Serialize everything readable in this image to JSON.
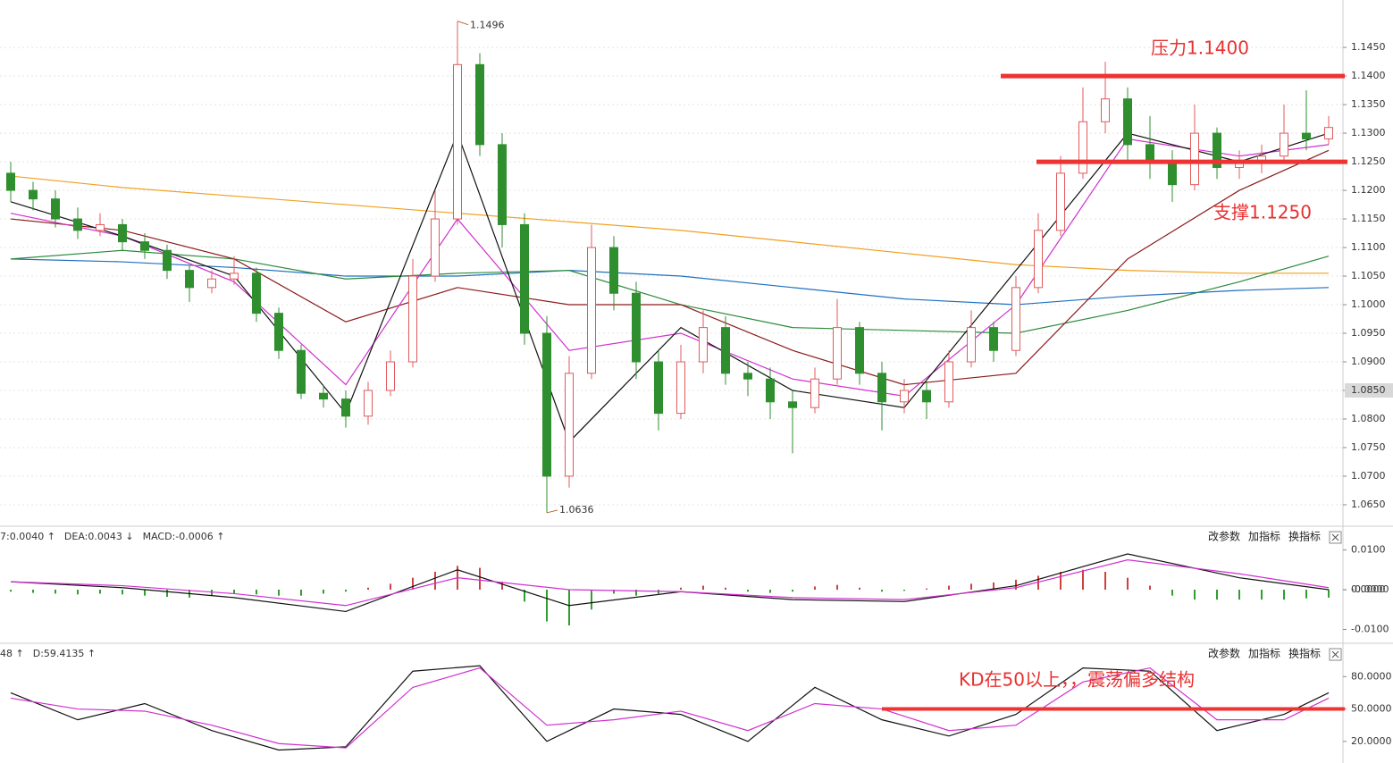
{
  "chart_data": [
    {
      "type": "candlestick",
      "up_color": "#e05a5c",
      "down_color": "#2f8f2f",
      "grid": true,
      "ylim": [
        1.0614,
        1.1533
      ],
      "yticks": [
        {
          "value": 1.145,
          "label": "1.1450"
        },
        {
          "value": 1.14,
          "label": "1.1400"
        },
        {
          "value": 1.135,
          "label": "1.1350"
        },
        {
          "value": 1.13,
          "label": "1.1300"
        },
        {
          "value": 1.125,
          "label": "1.1250"
        },
        {
          "value": 1.12,
          "label": "1.1200"
        },
        {
          "value": 1.115,
          "label": "1.1150"
        },
        {
          "value": 1.11,
          "label": "1.1100"
        },
        {
          "value": 1.105,
          "label": "1.1050"
        },
        {
          "value": 1.1,
          "label": "1.1000"
        },
        {
          "value": 1.095,
          "label": "1.0950"
        },
        {
          "value": 1.09,
          "label": "1.0900"
        },
        {
          "value": 1.085,
          "label": "1.0850"
        },
        {
          "value": 1.08,
          "label": "1.0800"
        },
        {
          "value": 1.075,
          "label": "1.0750"
        },
        {
          "value": 1.07,
          "label": "1.0700"
        },
        {
          "value": 1.065,
          "label": "1.0650"
        }
      ],
      "open": [
        1.123,
        1.12,
        1.1185,
        1.115,
        1.113,
        1.114,
        1.111,
        1.1095,
        1.106,
        1.103,
        1.1045,
        1.1055,
        1.0985,
        1.092,
        1.0845,
        1.0835,
        1.0805,
        1.085,
        1.09,
        1.105,
        1.115,
        1.142,
        1.128,
        1.114,
        1.095,
        1.07,
        1.088,
        1.11,
        1.102,
        1.09,
        1.081,
        1.09,
        1.096,
        1.088,
        1.087,
        1.083,
        1.082,
        1.087,
        1.096,
        1.088,
        1.083,
        1.085,
        1.083,
        1.09,
        1.096,
        1.092,
        1.103,
        1.113,
        1.123,
        1.132,
        1.136,
        1.128,
        1.125,
        1.121,
        1.13,
        1.124,
        1.125,
        1.126,
        1.13,
        1.129
      ],
      "high": [
        1.125,
        1.1215,
        1.12,
        1.117,
        1.116,
        1.115,
        1.1125,
        1.1105,
        1.107,
        1.106,
        1.1085,
        1.1065,
        1.0995,
        1.093,
        1.086,
        1.085,
        1.0865,
        1.092,
        1.108,
        1.12,
        1.1496,
        1.144,
        1.13,
        1.116,
        1.098,
        1.091,
        1.114,
        1.112,
        1.104,
        1.092,
        1.093,
        1.099,
        1.098,
        1.09,
        1.089,
        1.085,
        1.089,
        1.101,
        1.097,
        1.09,
        1.087,
        1.087,
        1.092,
        1.099,
        1.097,
        1.105,
        1.116,
        1.126,
        1.138,
        1.1425,
        1.138,
        1.133,
        1.127,
        1.135,
        1.131,
        1.127,
        1.128,
        1.135,
        1.1375,
        1.133
      ],
      "low": [
        1.118,
        1.1165,
        1.1135,
        1.1115,
        1.112,
        1.1095,
        1.108,
        1.1045,
        1.1005,
        1.102,
        1.1035,
        1.097,
        1.0905,
        1.0835,
        1.082,
        1.0785,
        1.079,
        1.084,
        1.089,
        1.104,
        1.114,
        1.126,
        1.11,
        1.093,
        1.0636,
        1.068,
        1.087,
        1.099,
        1.087,
        1.078,
        1.08,
        1.088,
        1.086,
        1.084,
        1.08,
        1.074,
        1.081,
        1.086,
        1.086,
        1.078,
        1.081,
        1.08,
        1.082,
        1.089,
        1.09,
        1.091,
        1.102,
        1.112,
        1.122,
        1.13,
        1.125,
        1.122,
        1.118,
        1.12,
        1.122,
        1.122,
        1.123,
        1.125,
        1.127,
        1.128
      ],
      "close": [
        1.12,
        1.1185,
        1.115,
        1.113,
        1.114,
        1.111,
        1.1095,
        1.106,
        1.103,
        1.1045,
        1.1055,
        1.0985,
        1.092,
        1.0845,
        1.0835,
        1.0805,
        1.085,
        1.09,
        1.105,
        1.115,
        1.142,
        1.128,
        1.114,
        1.095,
        1.07,
        1.088,
        1.11,
        1.102,
        1.09,
        1.081,
        1.09,
        1.096,
        1.088,
        1.087,
        1.083,
        1.082,
        1.087,
        1.096,
        1.088,
        1.083,
        1.085,
        1.083,
        1.09,
        1.096,
        1.092,
        1.103,
        1.113,
        1.123,
        1.132,
        1.136,
        1.128,
        1.125,
        1.121,
        1.13,
        1.124,
        1.125,
        1.126,
        1.13,
        1.129,
        1.131
      ],
      "lines": [
        {
          "color": "#f0a020",
          "x": [
            0,
            5,
            10,
            15,
            20,
            25,
            30,
            35,
            40,
            45,
            50,
            55,
            59
          ],
          "values": [
            1.1225,
            1.1205,
            1.119,
            1.1175,
            1.116,
            1.1145,
            1.113,
            1.111,
            1.109,
            1.107,
            1.106,
            1.1055,
            1.1055
          ]
        },
        {
          "color": "#1f6fc0",
          "x": [
            0,
            5,
            10,
            15,
            20,
            25,
            30,
            35,
            40,
            45,
            50,
            55,
            59
          ],
          "values": [
            1.108,
            1.1075,
            1.1065,
            1.105,
            1.105,
            1.106,
            1.105,
            1.103,
            1.101,
            1.1,
            1.1015,
            1.1025,
            1.103
          ]
        },
        {
          "color": "#2a8a3a",
          "x": [
            0,
            5,
            10,
            15,
            20,
            25,
            30,
            35,
            40,
            45,
            50,
            55,
            59
          ],
          "values": [
            1.108,
            1.1095,
            1.108,
            1.1045,
            1.1055,
            1.106,
            1.1,
            1.096,
            1.0955,
            1.095,
            1.099,
            1.104,
            1.1085
          ]
        },
        {
          "color": "#8b1a1a",
          "x": [
            0,
            5,
            10,
            15,
            20,
            25,
            30,
            35,
            40,
            45,
            50,
            55,
            59
          ],
          "values": [
            1.115,
            1.113,
            1.108,
            1.097,
            1.103,
            1.1,
            1.1,
            1.092,
            1.086,
            1.088,
            1.108,
            1.12,
            1.127
          ]
        },
        {
          "color": "#d030d0",
          "x": [
            0,
            5,
            10,
            15,
            20,
            25,
            30,
            35,
            40,
            45,
            50,
            55,
            59
          ],
          "values": [
            1.116,
            1.112,
            1.104,
            1.086,
            1.115,
            1.092,
            1.095,
            1.087,
            1.084,
            1.1,
            1.129,
            1.126,
            1.128
          ]
        },
        {
          "color": "#111111",
          "x": [
            0,
            5,
            10,
            15,
            20,
            25,
            30,
            35,
            40,
            45,
            50,
            55,
            59
          ],
          "values": [
            1.118,
            1.112,
            1.105,
            1.081,
            1.13,
            1.076,
            1.096,
            1.085,
            1.082,
            1.106,
            1.13,
            1.125,
            1.13
          ]
        }
      ],
      "levels": [
        {
          "value": 1.14,
          "label": "压力1.1400"
        },
        {
          "value": 1.125,
          "label": "支撑1.1250"
        }
      ],
      "price_marker": {
        "value": 1.085,
        "label": "1.0850"
      }
    },
    {
      "type": "macd",
      "header": [
        "7:0.0040 ↑",
        "DEA:0.0043 ↓",
        "MACD:-0.0006 ↑"
      ],
      "buttons": [
        "改参数",
        "加指标",
        "换指标"
      ],
      "ylim": [
        -0.0135,
        0.0135
      ],
      "yticks": [
        {
          "value": 0.01,
          "label": "0.0100"
        },
        {
          "value": 0,
          "label": "0.0000"
        },
        {
          "value": -4e-05,
          "label": "-0.0000"
        },
        {
          "value": -0.01,
          "label": "-0.0100"
        }
      ],
      "hist": [
        -0.0005,
        -0.0008,
        -0.001,
        -0.0012,
        -0.001,
        -0.0012,
        -0.0015,
        -0.0018,
        -0.002,
        -0.0015,
        -0.001,
        -0.0012,
        -0.0015,
        -0.0015,
        -0.001,
        -0.0005,
        0.0005,
        0.0015,
        0.003,
        0.0045,
        0.006,
        0.0055,
        0.002,
        -0.003,
        -0.008,
        -0.009,
        -0.005,
        -0.001,
        -0.0015,
        -0.001,
        0.0005,
        0.001,
        0.0005,
        -0.0005,
        -0.0008,
        -0.0005,
        0.0008,
        0.0012,
        0.0005,
        -0.0005,
        -0.0003,
        0.0003,
        0.001,
        0.0015,
        0.0018,
        0.0025,
        0.0035,
        0.0045,
        0.005,
        0.0045,
        0.003,
        0.001,
        -0.0015,
        -0.0025,
        -0.0025,
        -0.0025,
        -0.0025,
        -0.0025,
        -0.0022,
        -0.002
      ],
      "lines": [
        {
          "color": "#111111",
          "x": [
            0,
            5,
            10,
            15,
            20,
            25,
            30,
            35,
            40,
            45,
            50,
            55,
            59
          ],
          "values": [
            0.002,
            0.0005,
            -0.002,
            -0.0055,
            0.005,
            -0.004,
            -0.0005,
            -0.0025,
            -0.003,
            0.001,
            0.009,
            0.003,
            0.0
          ]
        },
        {
          "color": "#d030d0",
          "x": [
            0,
            5,
            10,
            15,
            20,
            25,
            30,
            35,
            40,
            45,
            50,
            55,
            59
          ],
          "values": [
            0.002,
            0.001,
            -0.001,
            -0.004,
            0.003,
            0.0,
            -0.0005,
            -0.002,
            -0.0025,
            0.0005,
            0.0075,
            0.004,
            0.0005
          ]
        }
      ]
    },
    {
      "type": "kd",
      "header": [
        "48 ↑",
        "D:59.4135 ↑"
      ],
      "buttons": [
        "改参数",
        "加指标",
        "换指标"
      ],
      "ylim": [
        0,
        110
      ],
      "yticks": [
        {
          "value": 80,
          "label": "80.0000"
        },
        {
          "value": 50,
          "label": "50.0000"
        },
        {
          "value": 20,
          "label": "20.0000"
        }
      ],
      "lines": [
        {
          "color": "#111111",
          "x": [
            0,
            3,
            6,
            9,
            12,
            15,
            18,
            21,
            24,
            27,
            30,
            33,
            36,
            39,
            42,
            45,
            48,
            51,
            54,
            57,
            59
          ],
          "values": [
            65,
            40,
            55,
            30,
            12,
            15,
            85,
            90,
            20,
            50,
            45,
            20,
            70,
            40,
            25,
            45,
            88,
            85,
            30,
            45,
            65
          ]
        },
        {
          "color": "#d030d0",
          "x": [
            0,
            3,
            6,
            9,
            12,
            15,
            18,
            21,
            24,
            27,
            30,
            33,
            36,
            39,
            42,
            45,
            48,
            51,
            54,
            57,
            59
          ],
          "values": [
            60,
            50,
            48,
            35,
            18,
            14,
            70,
            88,
            35,
            40,
            48,
            30,
            55,
            50,
            30,
            35,
            75,
            88,
            40,
            40,
            60
          ]
        }
      ],
      "level": {
        "value": 50,
        "label": "KD在50以上，，震荡偏多结构"
      }
    }
  ]
}
